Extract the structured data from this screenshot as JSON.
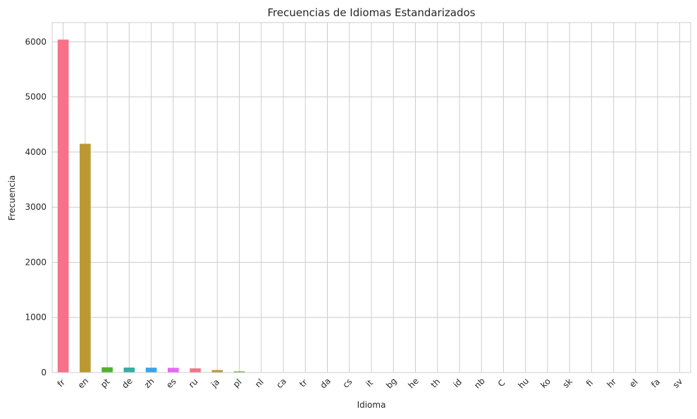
{
  "chart_data": {
    "type": "bar",
    "title": "Frecuencias de Idiomas Estandarizados",
    "xlabel": "Idioma",
    "ylabel": "Frecuencia",
    "ylim": [
      0,
      6350
    ],
    "yticks": [
      0,
      1000,
      2000,
      3000,
      4000,
      5000,
      6000
    ],
    "grid": true,
    "categories": [
      "fr",
      "en",
      "pt",
      "de",
      "zh",
      "es",
      "ru",
      "ja",
      "pl",
      "nl",
      "ca",
      "tr",
      "da",
      "cs",
      "it",
      "bg",
      "he",
      "th",
      "id",
      "nb",
      "C",
      "hu",
      "ko",
      "sk",
      "fi",
      "hr",
      "el",
      "fa",
      "sv"
    ],
    "values": [
      6040,
      4150,
      95,
      90,
      88,
      85,
      75,
      45,
      20,
      5,
      4,
      3,
      3,
      3,
      2,
      2,
      2,
      2,
      2,
      1,
      1,
      1,
      1,
      1,
      1,
      1,
      1,
      1,
      1
    ],
    "colors": [
      "#f77189",
      "#bb9832",
      "#50b131",
      "#36ada4",
      "#3ba3ec",
      "#e866f4",
      "#f77189",
      "#bb9832",
      "#50b131",
      "#36ada4",
      "#3ba3ec",
      "#e866f4",
      "#f77189",
      "#bb9832",
      "#50b131",
      "#36ada4",
      "#3ba3ec",
      "#e866f4",
      "#f77189",
      "#bb9832",
      "#50b131",
      "#36ada4",
      "#3ba3ec",
      "#e866f4",
      "#f77189",
      "#bb9832",
      "#50b131",
      "#36ada4",
      "#3ba3ec"
    ],
    "grid_color": "#cccccc",
    "spine_color": "#cccccc"
  }
}
